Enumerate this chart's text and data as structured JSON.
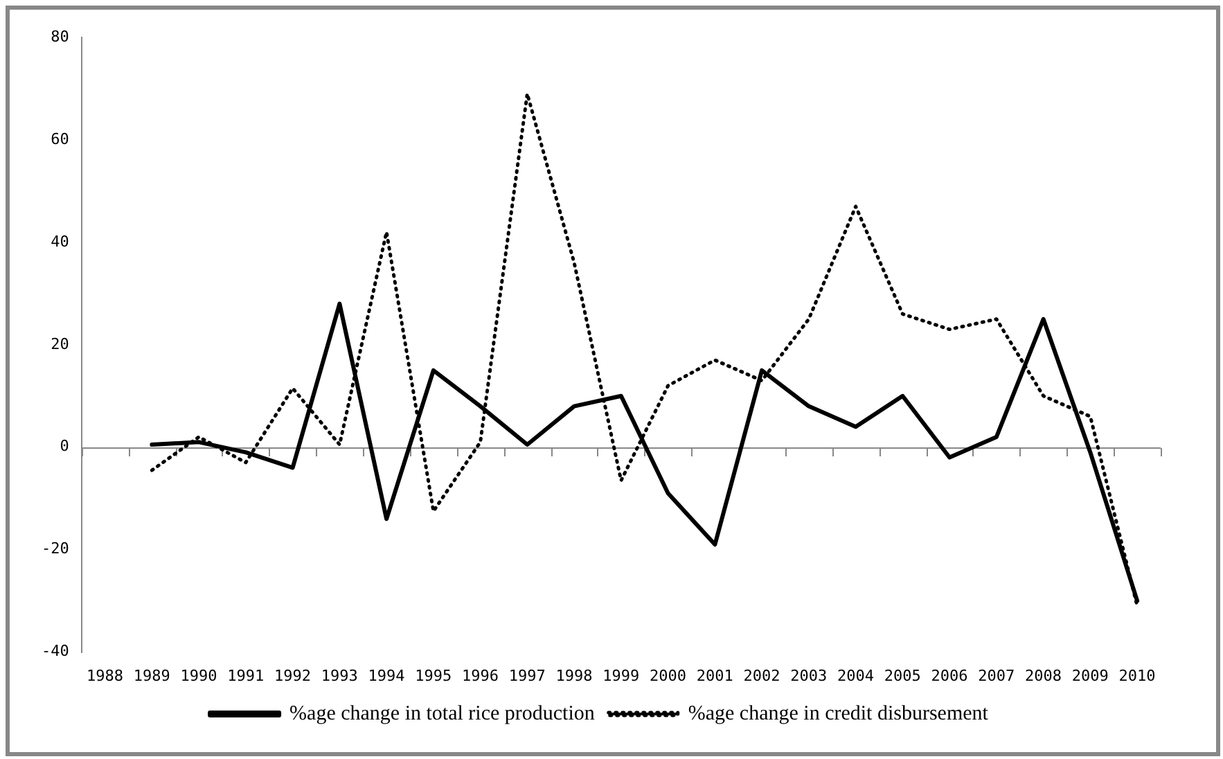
{
  "chart_data": {
    "type": "line",
    "categories": [
      "1988",
      "1989",
      "1990",
      "1991",
      "1992",
      "1993",
      "1994",
      "1995",
      "1996",
      "1997",
      "1998",
      "1999",
      "2000",
      "2001",
      "2002",
      "2003",
      "2004",
      "2005",
      "2006",
      "2007",
      "2008",
      "2009",
      "2010"
    ],
    "series": [
      {
        "name": "%age change in total rice production",
        "color": "#000000",
        "line_style": "solid",
        "values": [
          null,
          0.5,
          1,
          -1,
          -4,
          28,
          -14,
          15,
          8,
          0.5,
          8,
          10,
          -9,
          -19,
          15,
          8,
          4,
          10,
          -2,
          2,
          25,
          -1,
          -30
        ]
      },
      {
        "name": "%age change in credit disbursement",
        "color": "#000000",
        "line_style": "dotted",
        "values": [
          null,
          -4.5,
          2,
          -3,
          11.5,
          0.5,
          42,
          -12.5,
          1,
          69,
          36,
          -6.5,
          12,
          17,
          13,
          25,
          47,
          26,
          23,
          25,
          10,
          6,
          -31
        ]
      }
    ],
    "ref_lines": [
      {
        "axis": "y",
        "value": 0,
        "color": "#888888",
        "line_style": "solid"
      }
    ],
    "ylim": [
      -40,
      80
    ],
    "yticks": [
      -40,
      -20,
      0,
      20,
      40,
      60,
      80
    ],
    "grid": false,
    "legend": "bottom",
    "marker": "none"
  }
}
